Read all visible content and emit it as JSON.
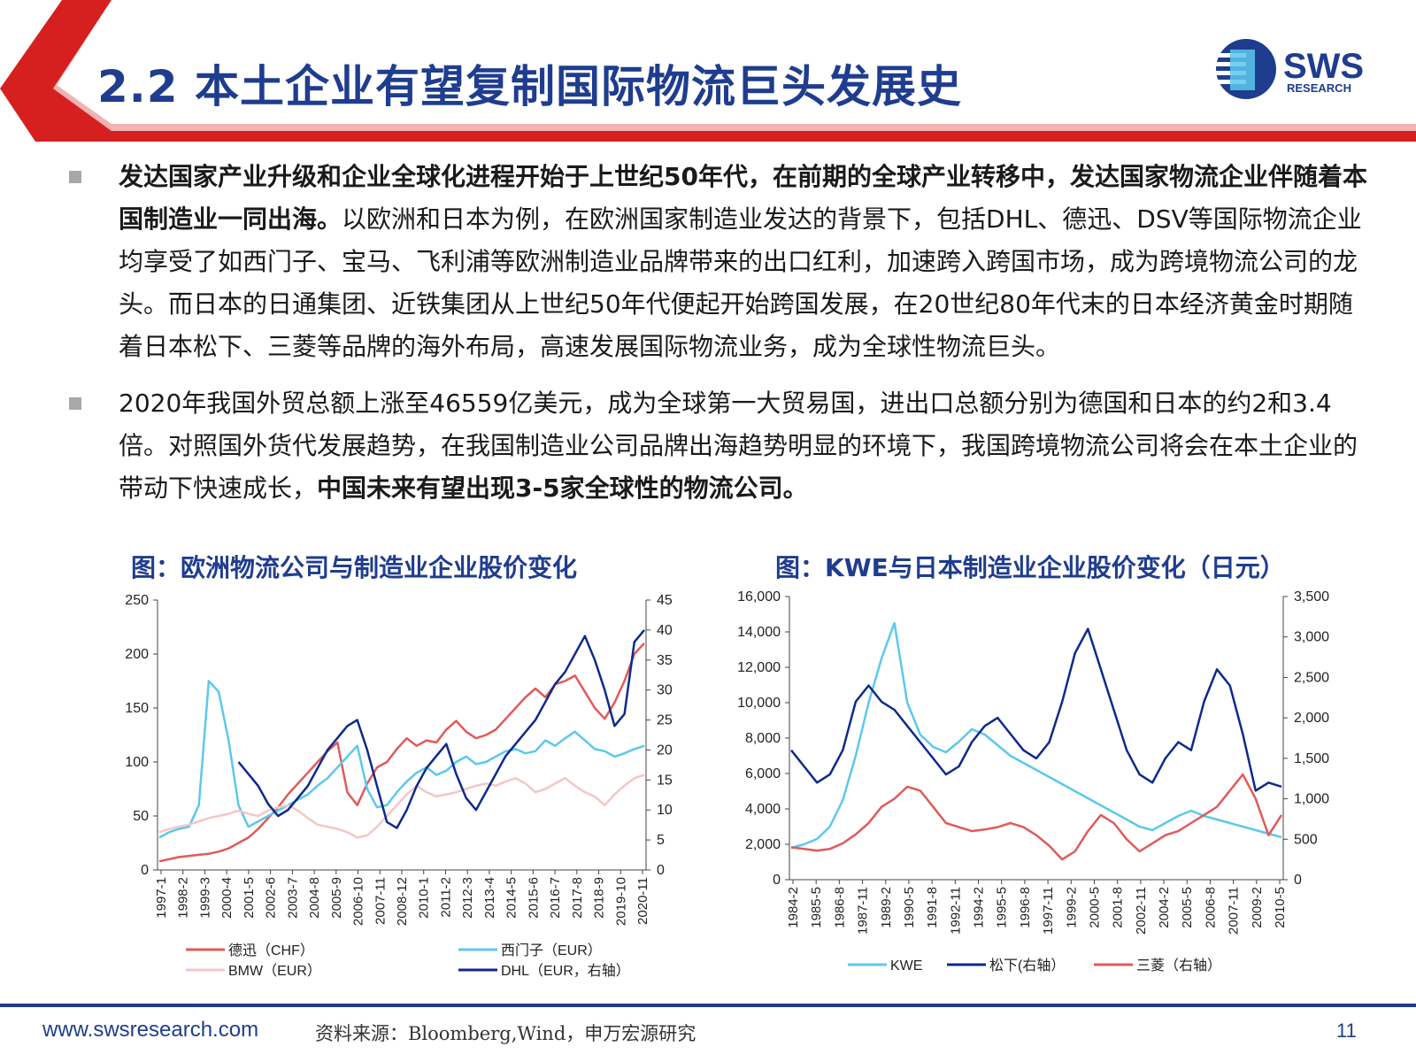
{
  "header": {
    "title": "2.2 本土企业有望复制国际物流巨头发展史",
    "logo_text": "SWS",
    "logo_subtext": "RESEARCH"
  },
  "bullets": [
    {
      "bold": "发达国家产业升级和企业全球化进程开始于上世纪50年代，在前期的全球产业转移中，发达国家物流企业伴随着本国制造业一同出海。",
      "text": "以欧洲和日本为例，在欧洲国家制造业发达的背景下，包括DHL、德迅、DSV等国际物流企业均享受了如西门子、宝马、飞利浦等欧洲制造业品牌带来的出口红利，加速跨入跨国市场，成为跨境物流公司的龙头。而日本的日通集团、近铁集团从上世纪50年代便起开始跨国发展，在20世纪80年代末的日本经济黄金时期随着日本松下、三菱等品牌的海外布局，高速发展国际物流业务，成为全球性物流巨头。"
    },
    {
      "text": "2020年我国外贸总额上涨至46559亿美元，成为全球第一大贸易国，进出口总额分别为德国和日本的约2和3.4倍。对照国外货代发展趋势，在我国制造业公司品牌出海趋势明显的环境下，我国跨境物流公司将会在本土企业的带动下快速成长，",
      "bold": "中国未来有望出现3-5家全球性的物流公司。"
    }
  ],
  "colors": {
    "brand_blue": "#1f3d8f",
    "red": "#e05a5a",
    "light_blue": "#5cc8ec",
    "pink": "#f5c6c6",
    "navy": "#0d2a8a"
  },
  "chart_data": [
    {
      "type": "line",
      "title": "图：欧洲物流公司与制造业企业股价变化",
      "x_ticks": [
        "1997-1",
        "1998-2",
        "1999-3",
        "2000-4",
        "2001-5",
        "2002-6",
        "2003-7",
        "2004-8",
        "2005-9",
        "2006-10",
        "2007-11",
        "2008-12",
        "2010-1",
        "2011-2",
        "2012-3",
        "2013-4",
        "2014-5",
        "2015-6",
        "2016-7",
        "2017-8",
        "2018-9",
        "2019-10",
        "2020-11"
      ],
      "y_left": {
        "ticks": [
          "0",
          "50",
          "100",
          "150",
          "200",
          "250"
        ],
        "range": [
          0,
          250
        ]
      },
      "y_right": {
        "ticks": [
          "0",
          "5",
          "10",
          "15",
          "20",
          "25",
          "30",
          "35",
          "40",
          "45"
        ],
        "range": [
          0,
          45
        ]
      },
      "series": [
        {
          "name": "德迅（CHF）",
          "axis": "left",
          "color": "#e05a5a",
          "values": [
            8,
            10,
            12,
            13,
            14,
            15,
            17,
            20,
            25,
            30,
            38,
            48,
            58,
            70,
            80,
            90,
            100,
            110,
            118,
            72,
            60,
            80,
            95,
            100,
            112,
            122,
            115,
            120,
            118,
            130,
            138,
            128,
            122,
            125,
            130,
            140,
            150,
            160,
            168,
            160,
            172,
            175,
            180,
            165,
            150,
            140,
            155,
            175,
            200,
            210
          ]
        },
        {
          "name": "西门子（EUR）",
          "axis": "left",
          "color": "#5cc8ec",
          "values": [
            30,
            35,
            38,
            40,
            60,
            175,
            165,
            120,
            60,
            40,
            45,
            50,
            55,
            60,
            65,
            70,
            78,
            85,
            95,
            105,
            115,
            75,
            58,
            60,
            72,
            82,
            90,
            95,
            88,
            92,
            100,
            105,
            98,
            100,
            105,
            110,
            112,
            108,
            110,
            120,
            115,
            122,
            128,
            120,
            112,
            110,
            105,
            108,
            112,
            115
          ]
        },
        {
          "name": "BMW（EUR）",
          "axis": "left",
          "color": "#f5c6c6",
          "values": [
            35,
            38,
            40,
            42,
            45,
            48,
            50,
            52,
            55,
            52,
            50,
            55,
            58,
            60,
            55,
            48,
            42,
            40,
            38,
            35,
            30,
            32,
            40,
            50,
            60,
            70,
            78,
            72,
            68,
            70,
            72,
            75,
            78,
            80,
            78,
            82,
            85,
            80,
            72,
            75,
            80,
            85,
            78,
            72,
            68,
            60,
            70,
            78,
            85,
            88
          ]
        },
        {
          "name": "DHL（EUR，右轴）",
          "axis": "right",
          "color": "#0d2a8a",
          "values": [
            null,
            null,
            null,
            null,
            null,
            null,
            null,
            null,
            18,
            16,
            14,
            11,
            9,
            10,
            12,
            14,
            17,
            20,
            22,
            24,
            25,
            20,
            14,
            8,
            7,
            10,
            14,
            17,
            19,
            21,
            16,
            12,
            10,
            13,
            16,
            19,
            21,
            23,
            25,
            28,
            31,
            33,
            36,
            39,
            35,
            30,
            24,
            26,
            38,
            40
          ]
        }
      ]
    },
    {
      "type": "line",
      "title": "图：KWE与日本制造业企业股价变化（日元）",
      "x_ticks": [
        "1984-2",
        "1985-5",
        "1986-8",
        "1987-11",
        "1989-2",
        "1990-5",
        "1991-8",
        "1992-11",
        "1994-2",
        "1995-5",
        "1996-8",
        "1997-11",
        "1999-2",
        "2000-5",
        "2001-8",
        "2002-11",
        "2004-2",
        "2005-5",
        "2006-8",
        "2007-11",
        "2009-2",
        "2010-5"
      ],
      "y_left": {
        "ticks": [
          "0",
          "2,000",
          "4,000",
          "6,000",
          "8,000",
          "10,000",
          "12,000",
          "14,000",
          "16,000"
        ],
        "range": [
          0,
          16000
        ]
      },
      "y_right": {
        "ticks": [
          "0",
          "500",
          "1,000",
          "1,500",
          "2,000",
          "2,500",
          "3,000",
          "3,500"
        ],
        "range": [
          0,
          3500
        ]
      },
      "series": [
        {
          "name": "KWE",
          "axis": "left",
          "color": "#5cc8ec",
          "values": [
            1800,
            2000,
            2300,
            3000,
            4500,
            7000,
            10000,
            12500,
            14500,
            10000,
            8200,
            7500,
            7200,
            7800,
            8500,
            8200,
            7600,
            7000,
            6600,
            6200,
            5800,
            5400,
            5000,
            4600,
            4200,
            3800,
            3400,
            3000,
            2800,
            3200,
            3600,
            3900,
            3600,
            3400,
            3200,
            3000,
            2800,
            2600,
            2400
          ]
        },
        {
          "name": "松下(右轴）",
          "axis": "right",
          "color": "#0d2a8a",
          "values": [
            1600,
            1400,
            1200,
            1300,
            1600,
            2200,
            2400,
            2200,
            2100,
            1900,
            1700,
            1500,
            1300,
            1400,
            1700,
            1900,
            2000,
            1800,
            1600,
            1500,
            1700,
            2200,
            2800,
            3100,
            2600,
            2100,
            1600,
            1300,
            1200,
            1500,
            1700,
            1600,
            2200,
            2600,
            2400,
            1800,
            1100,
            1200,
            1150
          ]
        },
        {
          "name": "三菱（右轴）",
          "axis": "right",
          "color": "#e05a5a",
          "values": [
            400,
            380,
            360,
            380,
            450,
            560,
            700,
            900,
            1000,
            1150,
            1100,
            900,
            700,
            650,
            600,
            620,
            650,
            700,
            650,
            550,
            420,
            250,
            350,
            600,
            800,
            700,
            500,
            350,
            450,
            550,
            600,
            700,
            800,
            900,
            1100,
            1300,
            1000,
            550,
            800
          ]
        }
      ]
    }
  ],
  "footer": {
    "url": "www.swsresearch.com",
    "source": "资料来源：Bloomberg,Wind，申万宏源研究",
    "page": "11"
  }
}
